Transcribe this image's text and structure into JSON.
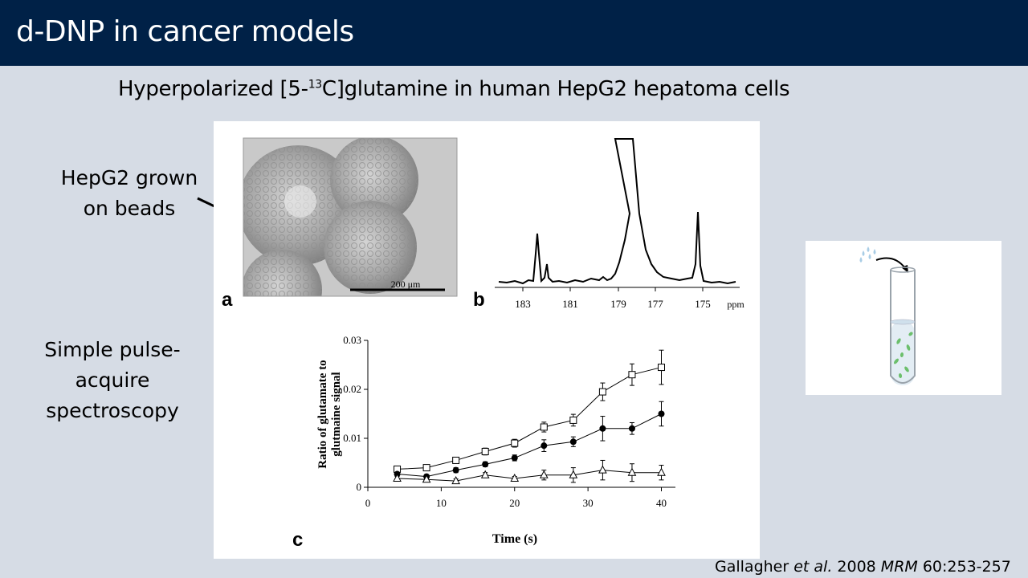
{
  "slide": {
    "title": "d-DNP in cancer models",
    "subtitle_pre": "Hyperpolarized [5-",
    "subtitle_sup": "13",
    "subtitle_post": "C]glutamine in human HepG2 hepatoma cells",
    "label_beads_line1": "HepG2 grown",
    "label_beads_line2": "on beads",
    "label_spec_line1": "Simple pulse-",
    "label_spec_line2": "acquire",
    "label_spec_line3": "spectroscopy",
    "citation_author": "Gallagher ",
    "citation_etal": "et al.",
    "citation_year": " 2008 ",
    "citation_journal": "MRM",
    "citation_pages": " 60:253-257"
  },
  "panel_a": {
    "letter": "a",
    "scale_bar": "200 μm"
  },
  "panel_b": {
    "letter": "b",
    "ticks": [
      "183",
      "181",
      "179",
      "177",
      "175"
    ],
    "unit": "ppm"
  },
  "chart_data": {
    "type": "line",
    "panel_letter": "c",
    "xlabel": "Time (s)",
    "ylabel_line1": "Ratio of glutamate to",
    "ylabel_line2": "glutmaine signal",
    "xlim": [
      0,
      40
    ],
    "ylim": [
      0,
      0.03
    ],
    "x_ticks": [
      "0",
      "10",
      "20",
      "30",
      "40"
    ],
    "y_ticks": [
      "0",
      "0.01",
      "0.02",
      "0.03"
    ],
    "x": [
      4,
      8,
      12,
      16,
      20,
      24,
      28,
      32,
      36,
      40
    ],
    "series": [
      {
        "marker": "open-square",
        "values": [
          0.0037,
          0.004,
          0.0055,
          0.0073,
          0.009,
          0.0123,
          0.0137,
          0.0195,
          0.023,
          0.0245
        ],
        "errors": [
          0.0005,
          0.0004,
          0.0006,
          0.0007,
          0.0008,
          0.001,
          0.0012,
          0.0018,
          0.0022,
          0.0035
        ]
      },
      {
        "marker": "filled-circle",
        "values": [
          0.0027,
          0.0022,
          0.0035,
          0.0047,
          0.006,
          0.0085,
          0.0093,
          0.012,
          0.012,
          0.015
        ],
        "errors": [
          0.0004,
          0.0004,
          0.0005,
          0.0005,
          0.0006,
          0.0012,
          0.001,
          0.0025,
          0.0012,
          0.0025
        ]
      },
      {
        "marker": "open-triangle",
        "values": [
          0.0018,
          0.0016,
          0.0013,
          0.0025,
          0.0018,
          0.0025,
          0.0025,
          0.0035,
          0.003,
          0.003
        ],
        "errors": [
          0.0004,
          0.0004,
          0.0004,
          0.0005,
          0.0004,
          0.001,
          0.0015,
          0.002,
          0.0018,
          0.0015
        ]
      }
    ]
  }
}
